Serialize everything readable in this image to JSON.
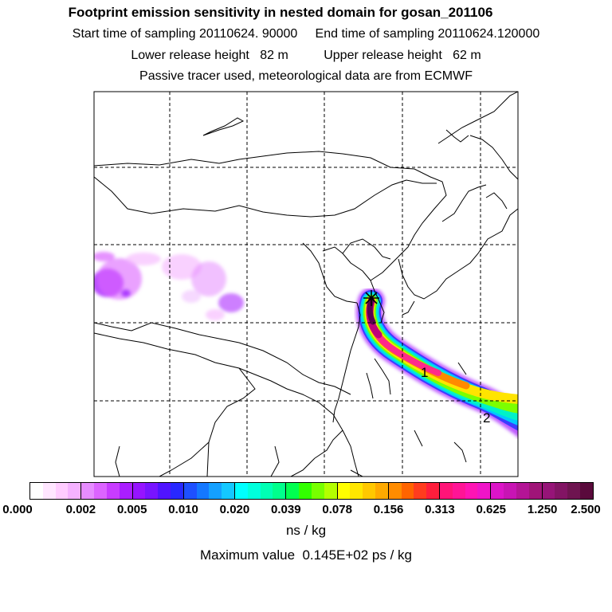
{
  "header": {
    "title": "Footprint emission sensitivity in nested domain for gosan_201106",
    "sampling_line": "Start time of sampling 20110624. 90000     End time of sampling 20110624.120000",
    "release_line": "Lower release height   82 m          Upper release height   62 m",
    "info_line": "Passive tracer used, meteorological data are from ECMWF"
  },
  "map": {
    "region": "East Asia nested domain",
    "gridlines": "dashed",
    "release_marker": "star-icon",
    "plume_labels": [
      "1",
      "2"
    ],
    "plume_colors": [
      "#5a0050",
      "#c0007a",
      "#ff2a8a",
      "#ff8a00",
      "#ffe400",
      "#7cff00",
      "#00f2c8",
      "#00c8ff",
      "#3c3cff",
      "#b23cff"
    ]
  },
  "colorbar": {
    "tick_labels": [
      "0.000",
      "0.002",
      "0.005",
      "0.010",
      "0.020",
      "0.039",
      "0.078",
      "0.156",
      "0.313",
      "0.625",
      "1.250",
      "2.500"
    ],
    "colors": [
      "#ffffff",
      "#ffe6ff",
      "#ffccff",
      "#f5b2ff",
      "#e68cff",
      "#dc64ff",
      "#c83cff",
      "#aa1eff",
      "#9614ff",
      "#7814ff",
      "#5014ff",
      "#2828ff",
      "#1e50ff",
      "#1478ff",
      "#14a0ff",
      "#14c8ff",
      "#00ffff",
      "#00ffdc",
      "#00ffb4",
      "#00ff8c",
      "#00ff50",
      "#32ff00",
      "#78ff00",
      "#b4ff00",
      "#ffff00",
      "#ffe600",
      "#ffc800",
      "#ffaa00",
      "#ff8c00",
      "#ff6400",
      "#ff3c1e",
      "#ff1e3c",
      "#ff1478",
      "#ff1496",
      "#ff14b4",
      "#f014c8",
      "#dc14c8",
      "#c814b4",
      "#b41496",
      "#a01478",
      "#961478",
      "#821464",
      "#6e1450",
      "#5a0a3c"
    ],
    "units": "ns / kg"
  },
  "footer": {
    "max_value": "Maximum value  0.145E+02 ps / kg"
  }
}
